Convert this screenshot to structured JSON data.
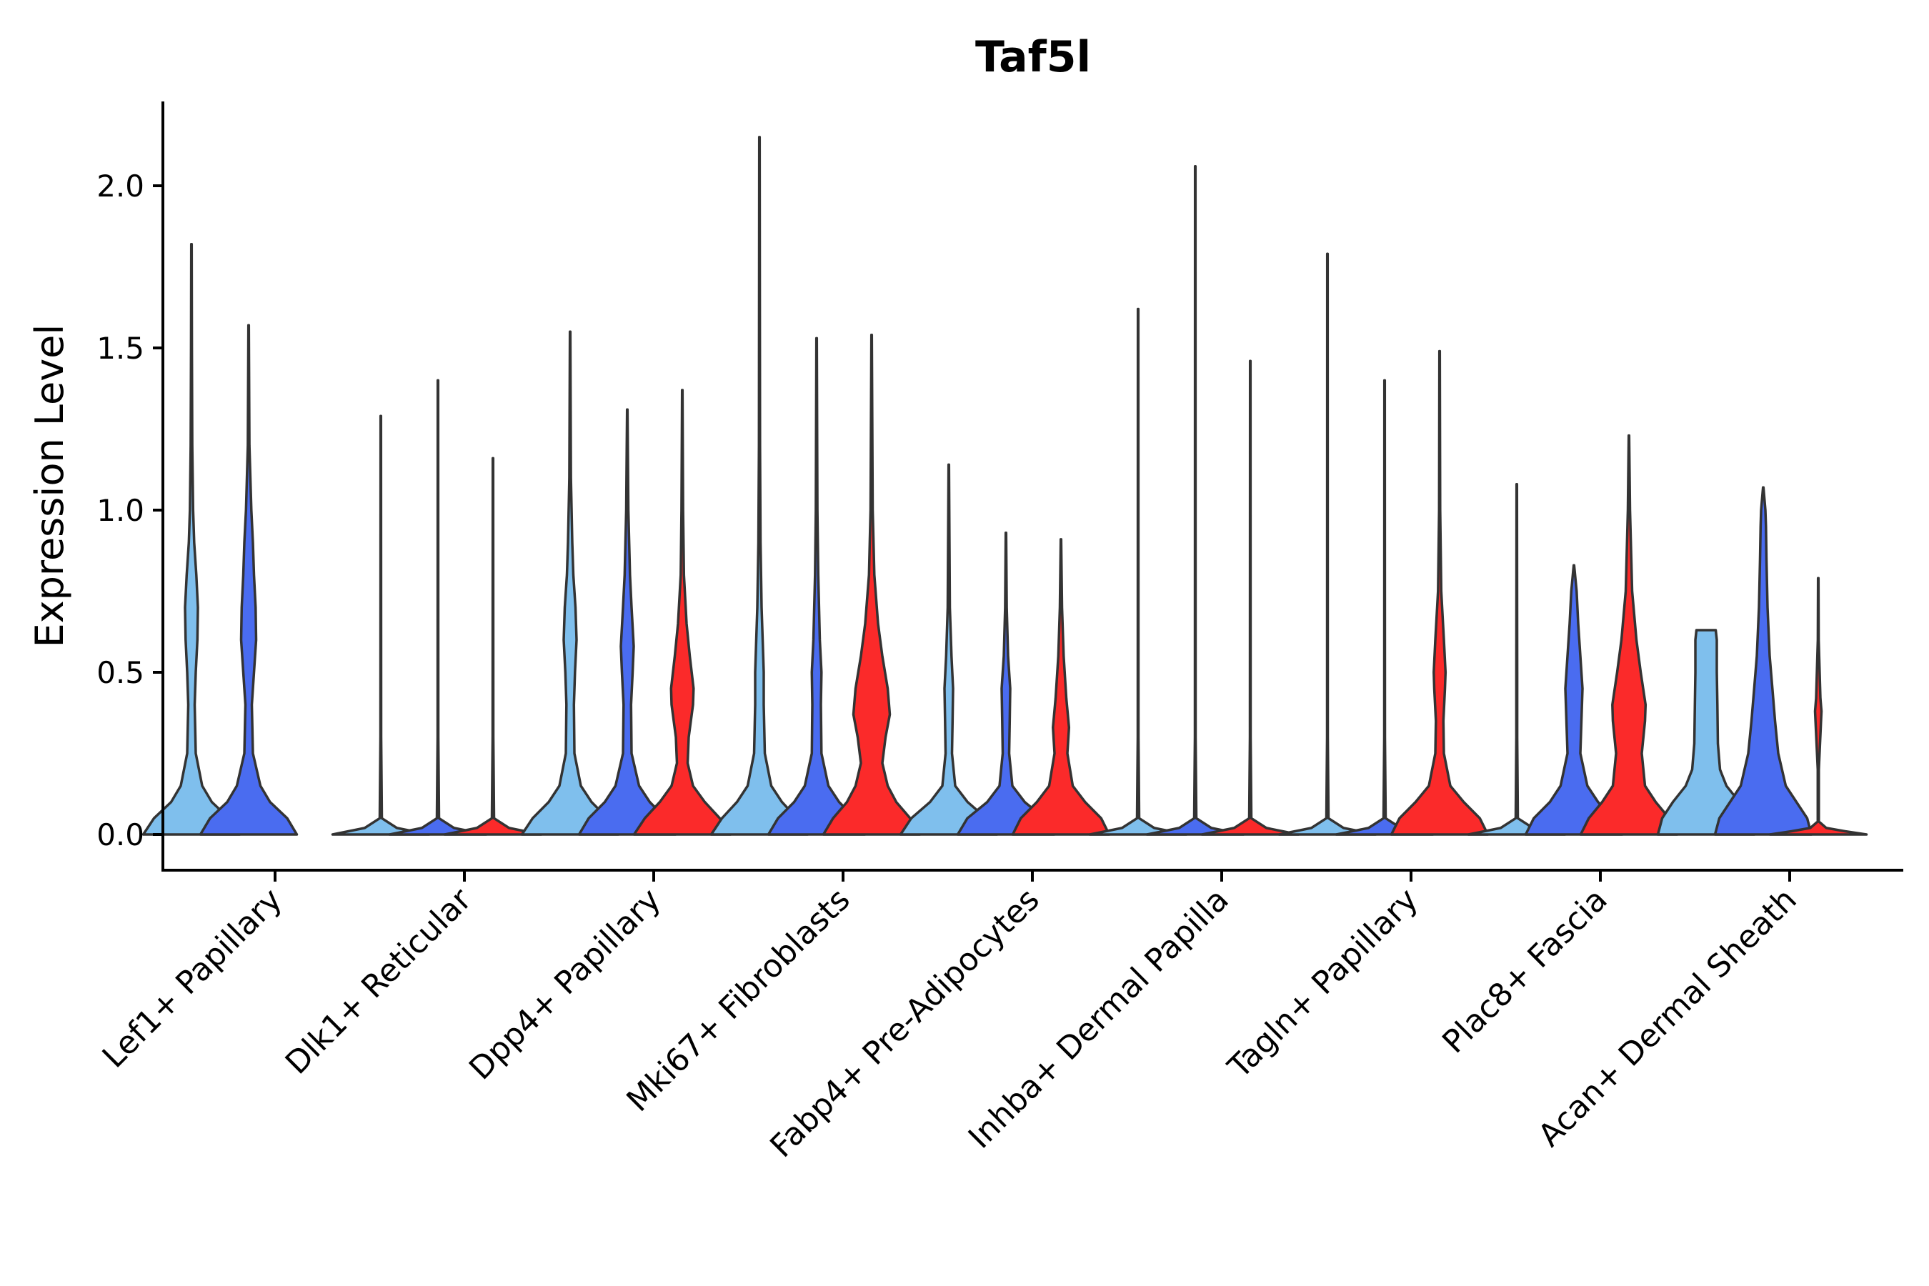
{
  "chart_data": {
    "type": "violin",
    "title": "Taf5l",
    "xlabel": "",
    "ylabel": "Expression Level",
    "ylim": [
      -0.105,
      2.25
    ],
    "yticks": [
      "0.0",
      "0.5",
      "1.0",
      "1.5",
      "2.0"
    ],
    "ytick_values": [
      0,
      0.5,
      1,
      1.5,
      2
    ],
    "series_colors": {
      "group1": "#7fbfed",
      "group2": "#4a6cf0",
      "group3": "#fb2a2a"
    },
    "categories": [
      "Lef1+ Papillary",
      "Dlk1+ Reticular",
      "Dpp4+ Papillary",
      "Mki67+ Fibroblasts",
      "Fabp4+ Pre-Adipocytes",
      "Inhba+ Dermal Papilla",
      "Tagln+ Papillary",
      "Plac8+ Fascia",
      "Acan+ Dermal Sheath"
    ],
    "violins": [
      {
        "category": 0,
        "group": 1,
        "max": 1.82,
        "profile": [
          [
            0,
            0.9
          ],
          [
            0.05,
            0.7
          ],
          [
            0.1,
            0.38
          ],
          [
            0.15,
            0.2
          ],
          [
            0.25,
            0.08
          ],
          [
            0.4,
            0.06
          ],
          [
            0.5,
            0.08
          ],
          [
            0.6,
            0.11
          ],
          [
            0.7,
            0.12
          ],
          [
            0.8,
            0.09
          ],
          [
            0.9,
            0.05
          ],
          [
            1.0,
            0.03
          ],
          [
            1.2,
            0.015
          ],
          [
            1.5,
            0.008
          ],
          [
            1.82,
            0.004
          ]
        ]
      },
      {
        "category": 0,
        "group": 2,
        "max": 1.57,
        "profile": [
          [
            0,
            0.9
          ],
          [
            0.05,
            0.72
          ],
          [
            0.1,
            0.4
          ],
          [
            0.15,
            0.22
          ],
          [
            0.25,
            0.08
          ],
          [
            0.4,
            0.06
          ],
          [
            0.5,
            0.1
          ],
          [
            0.6,
            0.14
          ],
          [
            0.7,
            0.13
          ],
          [
            0.8,
            0.1
          ],
          [
            0.9,
            0.08
          ],
          [
            1.0,
            0.05
          ],
          [
            1.2,
            0.015
          ],
          [
            1.57,
            0.004
          ]
        ]
      },
      {
        "category": 1,
        "group": 1,
        "max": 1.29,
        "profile": [
          [
            0,
            0.9
          ],
          [
            0.02,
            0.3
          ],
          [
            0.05,
            0.02
          ],
          [
            0.3,
            0.006
          ],
          [
            1.29,
            0.004
          ]
        ]
      },
      {
        "category": 1,
        "group": 2,
        "max": 1.4,
        "profile": [
          [
            0,
            0.9
          ],
          [
            0.02,
            0.3
          ],
          [
            0.05,
            0.02
          ],
          [
            0.3,
            0.006
          ],
          [
            1.4,
            0.004
          ]
        ]
      },
      {
        "category": 1,
        "group": 3,
        "max": 1.16,
        "profile": [
          [
            0,
            0.9
          ],
          [
            0.02,
            0.3
          ],
          [
            0.05,
            0.02
          ],
          [
            0.3,
            0.006
          ],
          [
            1.16,
            0.004
          ]
        ]
      },
      {
        "category": 2,
        "group": 1,
        "max": 1.55,
        "profile": [
          [
            0,
            0.9
          ],
          [
            0.05,
            0.7
          ],
          [
            0.1,
            0.4
          ],
          [
            0.15,
            0.2
          ],
          [
            0.25,
            0.08
          ],
          [
            0.4,
            0.07
          ],
          [
            0.5,
            0.09
          ],
          [
            0.6,
            0.12
          ],
          [
            0.7,
            0.1
          ],
          [
            0.8,
            0.06
          ],
          [
            0.9,
            0.04
          ],
          [
            1.1,
            0.015
          ],
          [
            1.55,
            0.004
          ]
        ]
      },
      {
        "category": 2,
        "group": 2,
        "max": 1.31,
        "profile": [
          [
            0,
            0.9
          ],
          [
            0.05,
            0.72
          ],
          [
            0.1,
            0.42
          ],
          [
            0.15,
            0.22
          ],
          [
            0.25,
            0.08
          ],
          [
            0.4,
            0.07
          ],
          [
            0.5,
            0.1
          ],
          [
            0.58,
            0.12
          ],
          [
            0.7,
            0.08
          ],
          [
            0.8,
            0.05
          ],
          [
            1.0,
            0.02
          ],
          [
            1.31,
            0.004
          ]
        ]
      },
      {
        "category": 2,
        "group": 3,
        "max": 1.37,
        "profile": [
          [
            0,
            0.9
          ],
          [
            0.05,
            0.7
          ],
          [
            0.1,
            0.42
          ],
          [
            0.15,
            0.2
          ],
          [
            0.22,
            0.1
          ],
          [
            0.3,
            0.12
          ],
          [
            0.4,
            0.2
          ],
          [
            0.45,
            0.21
          ],
          [
            0.55,
            0.14
          ],
          [
            0.65,
            0.08
          ],
          [
            0.8,
            0.03
          ],
          [
            1.0,
            0.015
          ],
          [
            1.37,
            0.004
          ]
        ]
      },
      {
        "category": 3,
        "group": 1,
        "max": 2.15,
        "profile": [
          [
            0,
            0.9
          ],
          [
            0.05,
            0.7
          ],
          [
            0.1,
            0.42
          ],
          [
            0.15,
            0.22
          ],
          [
            0.25,
            0.1
          ],
          [
            0.4,
            0.08
          ],
          [
            0.5,
            0.08
          ],
          [
            0.6,
            0.06
          ],
          [
            0.7,
            0.04
          ],
          [
            0.9,
            0.02
          ],
          [
            1.2,
            0.01
          ],
          [
            2.15,
            0.004
          ]
        ]
      },
      {
        "category": 3,
        "group": 2,
        "max": 1.53,
        "profile": [
          [
            0,
            0.9
          ],
          [
            0.05,
            0.72
          ],
          [
            0.1,
            0.42
          ],
          [
            0.15,
            0.22
          ],
          [
            0.25,
            0.09
          ],
          [
            0.4,
            0.08
          ],
          [
            0.5,
            0.09
          ],
          [
            0.6,
            0.06
          ],
          [
            0.8,
            0.03
          ],
          [
            1.0,
            0.015
          ],
          [
            1.53,
            0.004
          ]
        ]
      },
      {
        "category": 3,
        "group": 3,
        "max": 1.54,
        "profile": [
          [
            0,
            0.9
          ],
          [
            0.05,
            0.72
          ],
          [
            0.1,
            0.46
          ],
          [
            0.15,
            0.3
          ],
          [
            0.22,
            0.2
          ],
          [
            0.3,
            0.26
          ],
          [
            0.37,
            0.34
          ],
          [
            0.45,
            0.3
          ],
          [
            0.55,
            0.2
          ],
          [
            0.65,
            0.12
          ],
          [
            0.8,
            0.05
          ],
          [
            1.0,
            0.02
          ],
          [
            1.54,
            0.004
          ]
        ]
      },
      {
        "category": 4,
        "group": 1,
        "max": 1.14,
        "profile": [
          [
            0,
            0.9
          ],
          [
            0.05,
            0.7
          ],
          [
            0.1,
            0.35
          ],
          [
            0.15,
            0.12
          ],
          [
            0.25,
            0.06
          ],
          [
            0.35,
            0.07
          ],
          [
            0.45,
            0.08
          ],
          [
            0.55,
            0.05
          ],
          [
            0.7,
            0.02
          ],
          [
            1.14,
            0.004
          ]
        ]
      },
      {
        "category": 4,
        "group": 2,
        "max": 0.93,
        "profile": [
          [
            0,
            0.9
          ],
          [
            0.05,
            0.72
          ],
          [
            0.1,
            0.35
          ],
          [
            0.15,
            0.12
          ],
          [
            0.25,
            0.06
          ],
          [
            0.35,
            0.07
          ],
          [
            0.45,
            0.08
          ],
          [
            0.55,
            0.04
          ],
          [
            0.7,
            0.015
          ],
          [
            0.93,
            0.004
          ]
        ]
      },
      {
        "category": 4,
        "group": 3,
        "max": 0.91,
        "profile": [
          [
            0,
            0.9
          ],
          [
            0.05,
            0.75
          ],
          [
            0.1,
            0.45
          ],
          [
            0.15,
            0.22
          ],
          [
            0.25,
            0.12
          ],
          [
            0.33,
            0.15
          ],
          [
            0.42,
            0.1
          ],
          [
            0.55,
            0.05
          ],
          [
            0.7,
            0.02
          ],
          [
            0.91,
            0.004
          ]
        ]
      },
      {
        "category": 5,
        "group": 1,
        "max": 1.62,
        "profile": [
          [
            0,
            0.9
          ],
          [
            0.02,
            0.3
          ],
          [
            0.05,
            0.02
          ],
          [
            0.3,
            0.006
          ],
          [
            1.62,
            0.004
          ]
        ]
      },
      {
        "category": 5,
        "group": 2,
        "max": 2.06,
        "profile": [
          [
            0,
            0.9
          ],
          [
            0.02,
            0.3
          ],
          [
            0.05,
            0.02
          ],
          [
            0.3,
            0.006
          ],
          [
            2.06,
            0.004
          ]
        ]
      },
      {
        "category": 5,
        "group": 3,
        "max": 1.46,
        "profile": [
          [
            0,
            0.9
          ],
          [
            0.02,
            0.3
          ],
          [
            0.05,
            0.02
          ],
          [
            0.3,
            0.006
          ],
          [
            1.46,
            0.004
          ]
        ]
      },
      {
        "category": 6,
        "group": 1,
        "max": 1.79,
        "profile": [
          [
            0,
            0.9
          ],
          [
            0.02,
            0.3
          ],
          [
            0.05,
            0.02
          ],
          [
            0.3,
            0.006
          ],
          [
            1.79,
            0.004
          ]
        ]
      },
      {
        "category": 6,
        "group": 2,
        "max": 1.4,
        "profile": [
          [
            0,
            0.9
          ],
          [
            0.02,
            0.3
          ],
          [
            0.05,
            0.02
          ],
          [
            0.3,
            0.006
          ],
          [
            1.4,
            0.004
          ]
        ]
      },
      {
        "category": 6,
        "group": 3,
        "max": 1.49,
        "profile": [
          [
            0,
            0.9
          ],
          [
            0.05,
            0.75
          ],
          [
            0.1,
            0.45
          ],
          [
            0.15,
            0.2
          ],
          [
            0.25,
            0.08
          ],
          [
            0.35,
            0.07
          ],
          [
            0.45,
            0.1
          ],
          [
            0.5,
            0.11
          ],
          [
            0.6,
            0.08
          ],
          [
            0.75,
            0.03
          ],
          [
            1.0,
            0.01
          ],
          [
            1.49,
            0.004
          ]
        ]
      },
      {
        "category": 7,
        "group": 1,
        "max": 1.08,
        "profile": [
          [
            0,
            0.9
          ],
          [
            0.02,
            0.3
          ],
          [
            0.05,
            0.02
          ],
          [
            0.3,
            0.008
          ],
          [
            0.5,
            0.008
          ],
          [
            1.08,
            0.004
          ]
        ]
      },
      {
        "category": 7,
        "group": 2,
        "max": 0.83,
        "profile": [
          [
            0,
            0.9
          ],
          [
            0.05,
            0.75
          ],
          [
            0.1,
            0.45
          ],
          [
            0.15,
            0.25
          ],
          [
            0.25,
            0.12
          ],
          [
            0.35,
            0.14
          ],
          [
            0.45,
            0.16
          ],
          [
            0.55,
            0.12
          ],
          [
            0.65,
            0.08
          ],
          [
            0.75,
            0.05
          ],
          [
            0.83,
            0.004
          ]
        ]
      },
      {
        "category": 7,
        "group": 3,
        "max": 1.23,
        "profile": [
          [
            0,
            0.9
          ],
          [
            0.05,
            0.75
          ],
          [
            0.1,
            0.5
          ],
          [
            0.15,
            0.3
          ],
          [
            0.25,
            0.24
          ],
          [
            0.35,
            0.3
          ],
          [
            0.4,
            0.31
          ],
          [
            0.5,
            0.22
          ],
          [
            0.6,
            0.14
          ],
          [
            0.75,
            0.06
          ],
          [
            1.0,
            0.02
          ],
          [
            1.23,
            0.004
          ]
        ]
      },
      {
        "category": 8,
        "group": 1,
        "max": 0.63,
        "profile": [
          [
            0,
            0.9
          ],
          [
            0.05,
            0.82
          ],
          [
            0.1,
            0.62
          ],
          [
            0.15,
            0.38
          ],
          [
            0.2,
            0.26
          ],
          [
            0.28,
            0.22
          ],
          [
            0.4,
            0.21
          ],
          [
            0.5,
            0.2
          ],
          [
            0.6,
            0.2
          ],
          [
            0.63,
            0.18
          ]
        ]
      },
      {
        "category": 8,
        "group": 2,
        "max": 1.07,
        "profile": [
          [
            0,
            0.9
          ],
          [
            0.05,
            0.82
          ],
          [
            0.1,
            0.62
          ],
          [
            0.15,
            0.42
          ],
          [
            0.25,
            0.28
          ],
          [
            0.35,
            0.22
          ],
          [
            0.45,
            0.17
          ],
          [
            0.55,
            0.12
          ],
          [
            0.7,
            0.08
          ],
          [
            0.85,
            0.06
          ],
          [
            0.95,
            0.05
          ],
          [
            1.0,
            0.04
          ],
          [
            1.07,
            0.004
          ]
        ]
      },
      {
        "category": 8,
        "group": 3,
        "max": 0.79,
        "profile": [
          [
            0,
            0.9
          ],
          [
            0.01,
            0.5
          ],
          [
            0.02,
            0.15
          ],
          [
            0.04,
            0.01
          ],
          [
            0.2,
            0.01
          ],
          [
            0.38,
            0.06
          ],
          [
            0.42,
            0.04
          ],
          [
            0.6,
            0.008
          ],
          [
            0.79,
            0.004
          ]
        ]
      }
    ]
  }
}
